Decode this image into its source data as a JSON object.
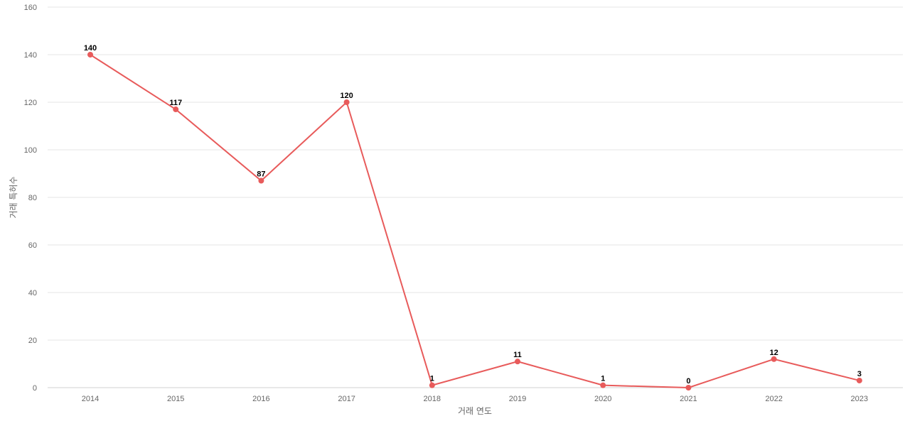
{
  "chart_data": {
    "type": "line",
    "xlabel": "거래 연도",
    "ylabel": "거래 특허수",
    "ylim": [
      0,
      160
    ],
    "yticks": [
      0,
      20,
      40,
      60,
      80,
      100,
      120,
      140,
      160
    ],
    "categories": [
      "2014",
      "2015",
      "2016",
      "2017",
      "2018",
      "2019",
      "2020",
      "2021",
      "2022",
      "2023"
    ],
    "series": [
      {
        "values": [
          140,
          117,
          87,
          120,
          1,
          11,
          1,
          0,
          12,
          3
        ],
        "color": "#e85b5b"
      }
    ],
    "grid": true,
    "legend": "none",
    "data_labels": true
  }
}
